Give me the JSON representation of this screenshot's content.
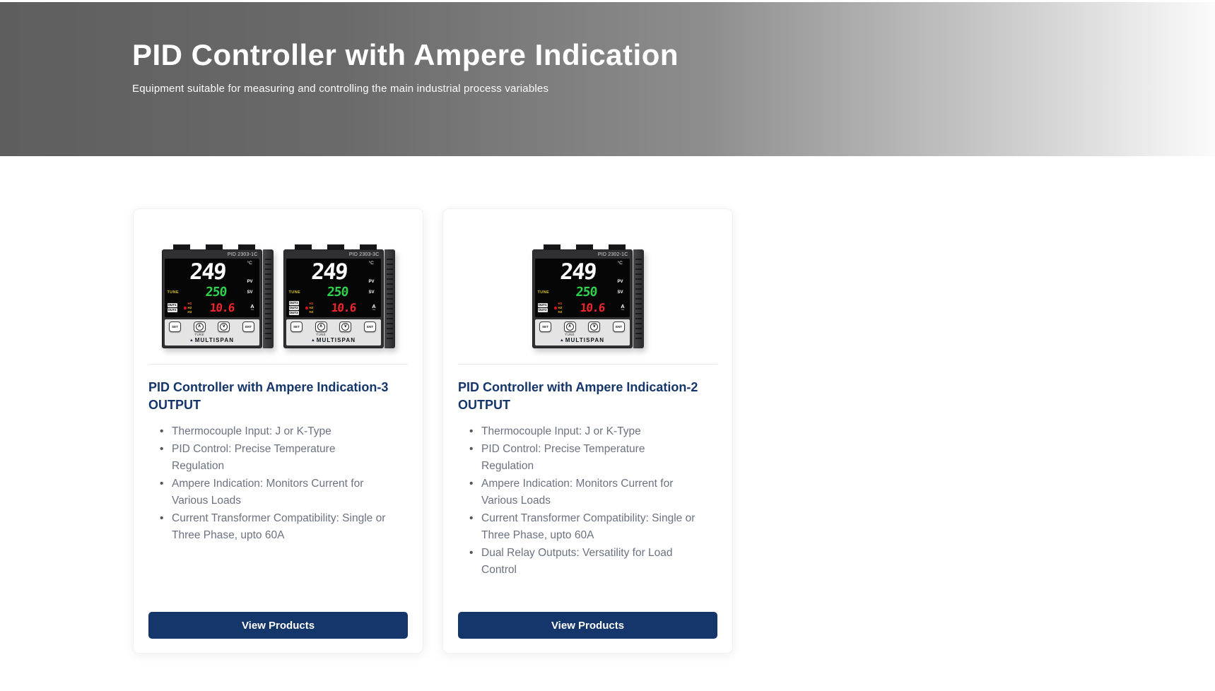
{
  "header": {
    "title": "PID Controller with Ampere Indication",
    "subtitle": "Equipment suitable for measuring and controlling the main industrial process variables"
  },
  "device_display": {
    "pv_value": "249",
    "pv_unit": "°C",
    "pv_label": "PV",
    "tune_indicator": "TUNE",
    "sv_value": "250",
    "sv_label": "SV",
    "amp_value": "10.6",
    "amp_unit": "A",
    "ac_symbol": "∼",
    "heater_labels": [
      "H1",
      "H2",
      "H3"
    ],
    "button_labels": {
      "set": "SET",
      "up": "∧",
      "down": "∨",
      "ent": "ENT"
    },
    "tune_button_label": "TUNE",
    "brand_logo": "▲",
    "brand": "MULTISPAN"
  },
  "cards": [
    {
      "title": "PID Controller with Ampere Indication-3 OUTPUT",
      "devices": [
        {
          "model": "PID 2303-1C",
          "out_badges": [
            "OUT1",
            "OUT2"
          ]
        },
        {
          "model": "PID 2303-3C",
          "out_badges": [
            "OUT1",
            "OUT2",
            "OUT3"
          ]
        }
      ],
      "features": [
        "Thermocouple Input: J or K-Type",
        "PID Control: Precise Temperature Regulation",
        "Ampere Indication: Monitors Current for Various Loads",
        "Current Transformer Compatibility: Single or Three Phase, upto 60A"
      ],
      "cta_label": "View Products"
    },
    {
      "title": "PID Controller with Ampere Indication-2 OUTPUT",
      "devices": [
        {
          "model": "PID 2302-1C",
          "out_badges": [
            "OUT1",
            "OUT2"
          ]
        }
      ],
      "features": [
        "Thermocouple Input: J or K-Type",
        "PID Control: Precise Temperature Regulation",
        "Ampere Indication: Monitors Current for Various Loads",
        "Current Transformer Compatibility: Single or Three Phase, upto 60A",
        "Dual Relay Outputs: Versatility for Load Control"
      ],
      "cta_label": "View Products"
    }
  ],
  "colors": {
    "accent_navy": "#15366b",
    "feature_text": "#6b7280",
    "banner_gradient_start": "#5e5e5e",
    "banner_gradient_end": "#fbfbfb",
    "lcd_pv": "#ffffff",
    "lcd_sv": "#2ed24e",
    "lcd_amp": "#f2232d",
    "lcd_tune": "#d8c21a"
  }
}
